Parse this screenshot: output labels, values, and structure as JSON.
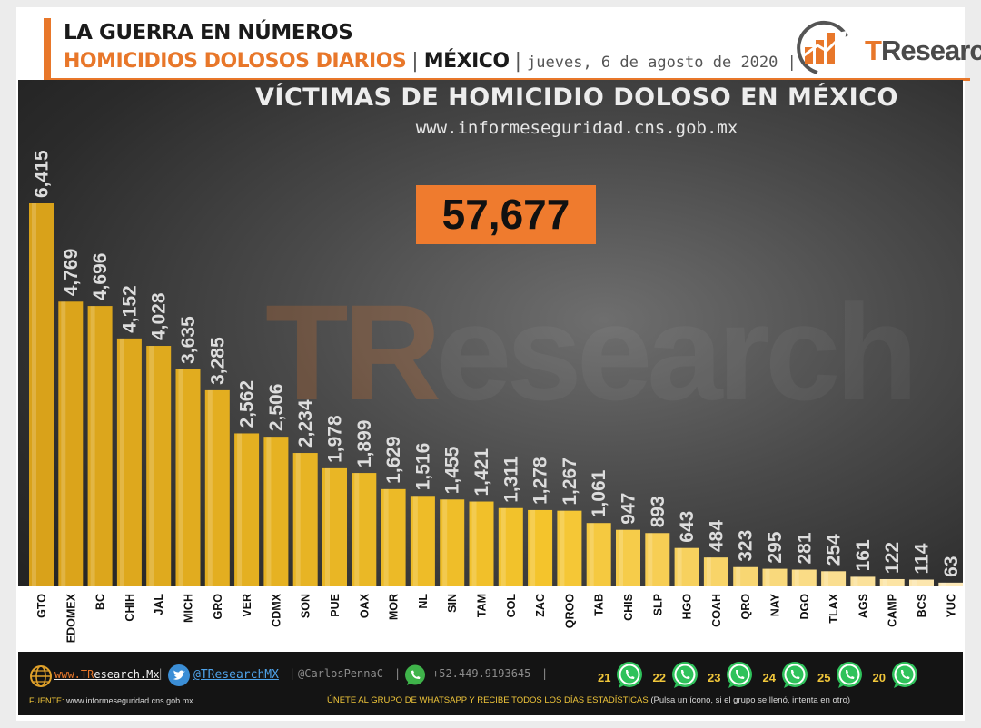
{
  "header": {
    "title_line1": "LA GUERRA EN NÚMEROS",
    "title_line2": "HOMICIDIOS DOLOSOS DIARIOS",
    "sep": "|",
    "region": "MÉXICO",
    "date": "jueves, 6 de agosto de 2020 |",
    "brand_t": "T",
    "brand_rest": "Research",
    "brand_icon": "bar-chart-up-arrow-icon"
  },
  "chart_data": {
    "type": "bar",
    "title": "VÍCTIMAS DE HOMICIDIO DOLOSO EN MÉXICO",
    "subtitle": "www.informeseguridad.cns.gob.mx",
    "total": "57,677",
    "categories": [
      "GTO",
      "EDOMEX",
      "BC",
      "CHIH",
      "JAL",
      "MICH",
      "GRO",
      "VER",
      "CDMX",
      "SON",
      "PUE",
      "OAX",
      "MOR",
      "NL",
      "SIN",
      "TAM",
      "COL",
      "ZAC",
      "QROO",
      "TAB",
      "CHIS",
      "SLP",
      "HGO",
      "COAH",
      "QRO",
      "NAY",
      "DGO",
      "TLAX",
      "AGS",
      "CAMP",
      "BCS",
      "YUC"
    ],
    "values": [
      6415,
      4769,
      4696,
      4152,
      4028,
      3635,
      3285,
      2562,
      2506,
      2234,
      1978,
      1899,
      1629,
      1516,
      1455,
      1421,
      1311,
      1278,
      1267,
      1061,
      947,
      893,
      643,
      484,
      323,
      295,
      281,
      254,
      161,
      122,
      114,
      63
    ],
    "value_labels": [
      "6,415",
      "4,769",
      "4,696",
      "4,152",
      "4,028",
      "3,635",
      "3,285",
      "2,562",
      "2,506",
      "2,234",
      "1,978",
      "1,899",
      "1,629",
      "1,516",
      "1,455",
      "1,421",
      "1,311",
      "1,278",
      "1,267",
      "1,061",
      "947",
      "893",
      "643",
      "484",
      "323",
      "295",
      "281",
      "254",
      "161",
      "122",
      "114",
      "63"
    ],
    "ylim": [
      0,
      6415
    ],
    "grid": false,
    "legend": "none",
    "colors": {
      "bar_top": "#f5d46a",
      "bar_mid": "#e8b21a",
      "bar_dark": "#b8860b",
      "bar_light": "#fbe6b8",
      "label": "#dddddd",
      "axis_label": "#111111"
    }
  },
  "watermark": {
    "t": "TR",
    "rest": "esearch"
  },
  "footer": {
    "website_t": "www.TR",
    "website_rest": "esearch.Mx",
    "pipe": "|",
    "twitter": "@TResearchMX",
    "author": "@CarlosPennaC",
    "phone": "+52.449.9193645",
    "whatsapp_groups": [
      "21",
      "22",
      "23",
      "24",
      "25",
      "20"
    ],
    "source_label": "FUENTE:",
    "source_value": "www.informeseguridad.cns.gob.mx",
    "join_text": "ÚNETE AL GRUPO DE WHATSAPP Y RECIBE TODOS LOS DÍAS ESTADÍSTICAS",
    "join_note": "(Pulsa un ícono, si el grupo se llenó, intenta en otro)",
    "icons": [
      "globe-icon",
      "twitter-icon",
      "whatsapp-icon"
    ]
  }
}
